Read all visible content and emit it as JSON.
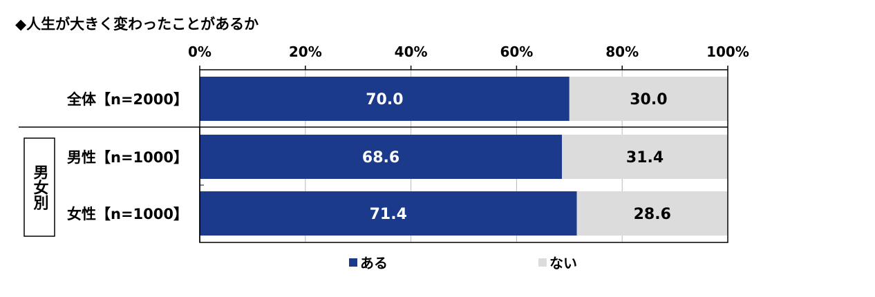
{
  "title": "◆人生が大きく変わったことがあるか",
  "chart_data": {
    "type": "bar",
    "orientation": "horizontal",
    "stacked": true,
    "percent": true,
    "xlim": [
      0,
      100
    ],
    "ticks": [
      "0%",
      "20%",
      "40%",
      "60%",
      "80%",
      "100%"
    ],
    "categories": [
      "全体【n=2000】",
      "男性【n=1000】",
      "女性【n=1000】"
    ],
    "group_label": "男女別",
    "series": [
      {
        "name": "ある",
        "color": "#1b3a8c",
        "label_color": "#ffffff",
        "values": [
          70.0,
          68.6,
          71.4
        ],
        "labels": [
          "70.0",
          "68.6",
          "71.4"
        ]
      },
      {
        "name": "ない",
        "color": "#dcdcdc",
        "label_color": "#000000",
        "values": [
          30.0,
          31.4,
          28.6
        ],
        "labels": [
          "30.0",
          "31.4",
          "28.6"
        ]
      }
    ],
    "legend_position": "bottom",
    "grid": true
  }
}
